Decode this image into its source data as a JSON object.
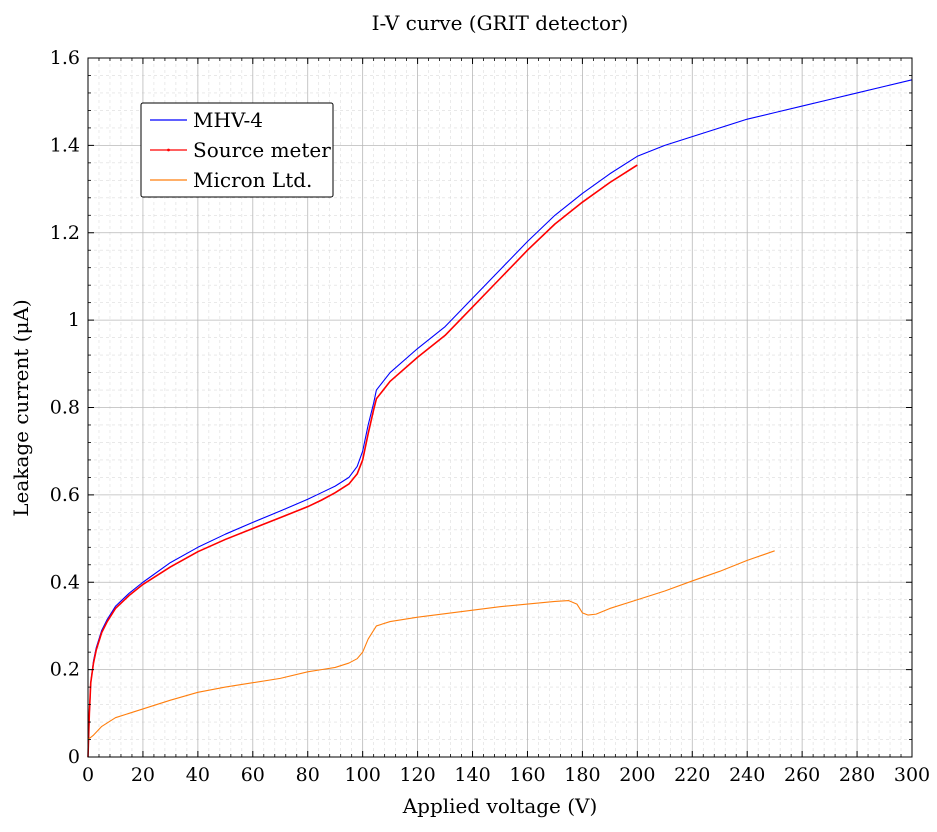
{
  "chart_data": {
    "type": "line",
    "title": "I-V curve (GRIT detector)",
    "xlabel": "Applied voltage (V)",
    "ylabel": "Leakage current (μA)",
    "xlim": [
      0,
      300
    ],
    "ylim": [
      0,
      1.6
    ],
    "xticks": [
      0,
      20,
      40,
      60,
      80,
      100,
      120,
      140,
      160,
      180,
      200,
      220,
      240,
      260,
      280,
      300
    ],
    "yticks": [
      0,
      0.2,
      0.4,
      0.6,
      0.8,
      1,
      1.2,
      1.4,
      1.6
    ],
    "xtick_labels": [
      "0",
      "20",
      "40",
      "60",
      "80",
      "100",
      "120",
      "140",
      "160",
      "180",
      "200",
      "220",
      "240",
      "260",
      "280",
      "300"
    ],
    "ytick_labels": [
      "0",
      "0.2",
      "0.4",
      "0.6",
      "0.8",
      "1",
      "1.2",
      "1.4",
      "1.6"
    ],
    "grid": true,
    "minor_grid": true,
    "legend_position": "top-left",
    "series": [
      {
        "name": "MHV-4",
        "color": "#0000ff",
        "x": [
          0,
          0.5,
          1,
          2,
          3,
          5,
          7,
          10,
          15,
          20,
          30,
          40,
          50,
          60,
          70,
          80,
          85,
          90,
          95,
          98,
          100,
          102,
          104,
          105,
          110,
          120,
          130,
          140,
          150,
          160,
          170,
          180,
          190,
          200,
          210,
          220,
          230,
          240,
          250,
          260,
          270,
          280,
          290,
          300
        ],
        "y": [
          0.0,
          0.1,
          0.17,
          0.22,
          0.25,
          0.29,
          0.315,
          0.345,
          0.375,
          0.4,
          0.445,
          0.48,
          0.51,
          0.537,
          0.563,
          0.59,
          0.605,
          0.62,
          0.64,
          0.665,
          0.7,
          0.76,
          0.81,
          0.84,
          0.88,
          0.935,
          0.985,
          1.05,
          1.115,
          1.18,
          1.24,
          1.29,
          1.335,
          1.375,
          1.4,
          1.42,
          1.44,
          1.46,
          1.475,
          1.49,
          1.505,
          1.52,
          1.535,
          1.55
        ]
      },
      {
        "name": "Source meter",
        "color": "#ff0000",
        "x": [
          0,
          0.5,
          1,
          2,
          3,
          5,
          7,
          10,
          15,
          20,
          30,
          40,
          50,
          60,
          70,
          80,
          85,
          90,
          95,
          98,
          100,
          102,
          104,
          105,
          110,
          120,
          130,
          140,
          150,
          160,
          170,
          180,
          190,
          200
        ],
        "y": [
          0.0,
          0.1,
          0.17,
          0.215,
          0.245,
          0.285,
          0.31,
          0.34,
          0.37,
          0.395,
          0.435,
          0.47,
          0.498,
          0.523,
          0.548,
          0.573,
          0.588,
          0.605,
          0.625,
          0.648,
          0.68,
          0.74,
          0.795,
          0.82,
          0.86,
          0.915,
          0.965,
          1.03,
          1.095,
          1.16,
          1.22,
          1.27,
          1.315,
          1.355
        ]
      },
      {
        "name": "Micron Ltd.",
        "color": "#ff7f0e",
        "x": [
          0,
          2,
          5,
          10,
          15,
          20,
          30,
          40,
          50,
          60,
          70,
          80,
          85,
          90,
          95,
          98,
          100,
          102,
          105,
          110,
          120,
          130,
          140,
          150,
          160,
          170,
          175,
          178,
          180,
          182,
          185,
          190,
          200,
          210,
          220,
          230,
          240,
          250
        ],
        "y": [
          0.04,
          0.05,
          0.07,
          0.09,
          0.1,
          0.11,
          0.13,
          0.148,
          0.16,
          0.17,
          0.18,
          0.195,
          0.2,
          0.205,
          0.215,
          0.225,
          0.24,
          0.27,
          0.3,
          0.31,
          0.32,
          0.328,
          0.336,
          0.344,
          0.35,
          0.356,
          0.358,
          0.35,
          0.33,
          0.325,
          0.327,
          0.34,
          0.36,
          0.38,
          0.403,
          0.425,
          0.45,
          0.472
        ]
      }
    ]
  }
}
